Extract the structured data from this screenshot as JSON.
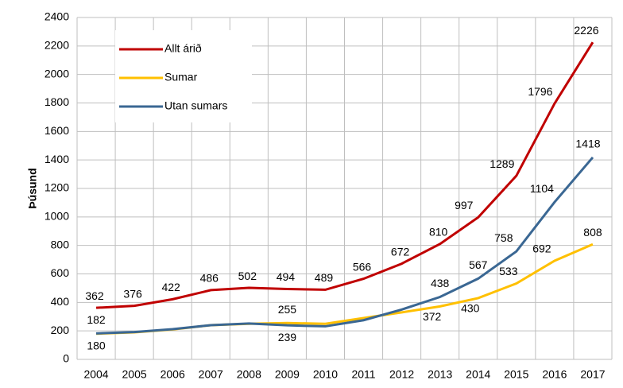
{
  "chart_data": {
    "type": "line",
    "ylabel": "Þúsund",
    "categories": [
      "2004",
      "2005",
      "2006",
      "2007",
      "2008",
      "2009",
      "2010",
      "2011",
      "2012",
      "2013",
      "2014",
      "2015",
      "2016",
      "2017"
    ],
    "series": [
      {
        "name": "Allt árið",
        "color": "#c00000",
        "values": [
          362,
          376,
          422,
          486,
          502,
          494,
          489,
          566,
          672,
          810,
          997,
          1289,
          1796,
          2226
        ],
        "value_labels": [
          "362",
          "376",
          "422",
          "486",
          "502",
          "494",
          "489",
          "566",
          "672",
          "810",
          "997",
          "1289",
          "1796",
          "2226"
        ]
      },
      {
        "name": "Sumar",
        "color": "#ffc000",
        "values": [
          180,
          190,
          210,
          240,
          250,
          255,
          250,
          290,
          330,
          372,
          430,
          533,
          692,
          808
        ],
        "value_labels": [
          "180",
          null,
          null,
          null,
          null,
          "255",
          null,
          null,
          null,
          "372",
          "430",
          "533",
          "692",
          "808"
        ]
      },
      {
        "name": "Utan sumars",
        "color": "#3a6793",
        "values": [
          182,
          192,
          212,
          240,
          252,
          239,
          232,
          275,
          350,
          438,
          567,
          758,
          1104,
          1418
        ],
        "value_labels": [
          "182",
          null,
          null,
          null,
          null,
          "239",
          null,
          null,
          null,
          "438",
          "567",
          "758",
          "1104",
          "1418"
        ]
      }
    ],
    "ylim": [
      0,
      2400
    ],
    "yticks": [
      0,
      200,
      400,
      600,
      800,
      1000,
      1200,
      1400,
      1600,
      1800,
      2000,
      2200,
      2400
    ],
    "grid": true,
    "legend": "upper left"
  }
}
